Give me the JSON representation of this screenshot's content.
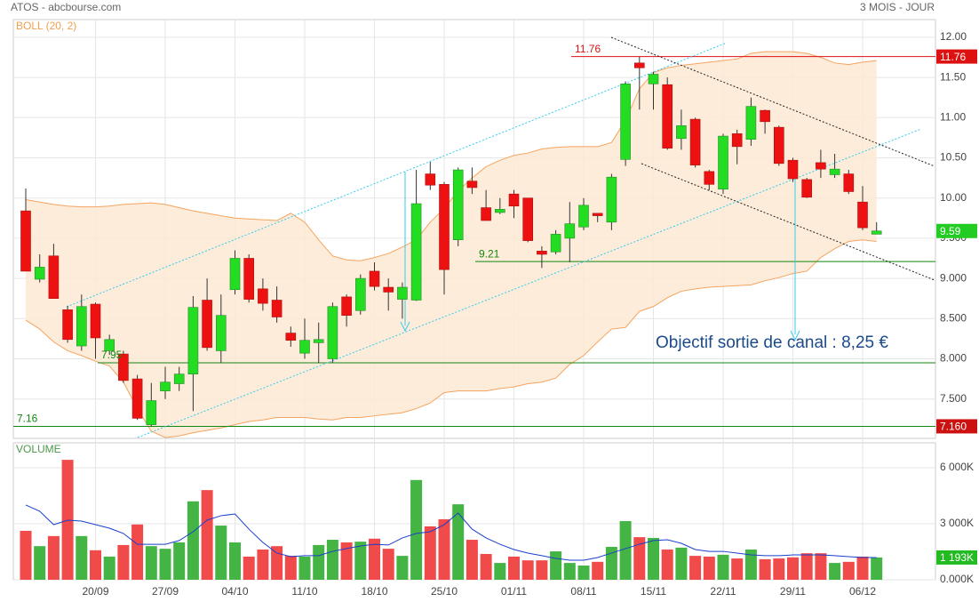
{
  "header": {
    "title": "ATOS - abcbourse.com",
    "period": "3 MOIS - JOUR"
  },
  "chart_data": [
    {
      "type": "candlestick",
      "indicator_label": "BOLL (20, 2)",
      "categories": [
        null,
        null,
        null,
        null,
        null,
        "20/09",
        null,
        null,
        null,
        null,
        "27/09",
        null,
        null,
        null,
        null,
        "04/10",
        null,
        null,
        null,
        null,
        "11/10",
        null,
        null,
        null,
        null,
        "18/10",
        null,
        null,
        null,
        null,
        "25/10",
        null,
        null,
        null,
        null,
        "01/11",
        null,
        null,
        null,
        null,
        "08/11",
        null,
        null,
        null,
        null,
        "15/11",
        null,
        null,
        null,
        null,
        "22/11",
        null,
        null,
        null,
        null,
        "29/11",
        null,
        null,
        null,
        null,
        "06/12",
        null
      ],
      "open": [
        9.84,
        8.99,
        9.28,
        8.61,
        8.16,
        8.68,
        8.1,
        8.06,
        7.75,
        7.18,
        7.6,
        7.69,
        7.81,
        8.73,
        8.1,
        8.86,
        9.25,
        8.87,
        8.73,
        8.32,
        8.07,
        8.2,
        8.0,
        8.77,
        8.6,
        9.09,
        8.89,
        8.74,
        8.73,
        10.3,
        10.17,
        9.48,
        10.21,
        9.88,
        9.82,
        10.05,
        10.0,
        9.34,
        9.33,
        9.5,
        9.64,
        9.81,
        9.7,
        10.48,
        11.68,
        11.42,
        11.41,
        10.74,
        10.98,
        10.33,
        10.11,
        10.8,
        10.73,
        11.09,
        10.88,
        10.47,
        10.23,
        10.44,
        10.29,
        10.3,
        9.95,
        9.55
      ],
      "high": [
        10.12,
        9.3,
        9.43,
        8.66,
        8.8,
        8.7,
        8.3,
        8.1,
        7.8,
        7.7,
        7.9,
        7.9,
        8.78,
        9.0,
        8.8,
        9.35,
        9.3,
        9.0,
        8.9,
        8.4,
        8.5,
        8.45,
        8.7,
        8.8,
        9.05,
        9.2,
        9.0,
        8.95,
        10.35,
        10.45,
        10.2,
        10.38,
        10.38,
        10.1,
        10.0,
        10.1,
        10.0,
        9.4,
        9.6,
        9.95,
        10.0,
        9.8,
        10.3,
        11.45,
        11.76,
        11.57,
        11.5,
        11.1,
        11.0,
        10.35,
        10.8,
        10.85,
        11.25,
        11.1,
        10.9,
        10.5,
        10.25,
        10.6,
        10.55,
        10.35,
        10.15,
        9.7
      ],
      "low": [
        9.09,
        8.95,
        8.75,
        8.2,
        8.1,
        8.0,
        8.05,
        7.7,
        7.24,
        7.16,
        7.5,
        7.6,
        7.35,
        8.1,
        7.95,
        8.8,
        8.7,
        8.6,
        8.45,
        8.15,
        8.0,
        7.95,
        7.95,
        8.4,
        8.55,
        8.85,
        8.6,
        8.5,
        8.72,
        10.1,
        8.8,
        9.4,
        10.05,
        9.72,
        9.8,
        9.75,
        9.45,
        9.13,
        9.3,
        9.2,
        9.6,
        9.7,
        9.6,
        10.4,
        11.1,
        11.1,
        10.6,
        10.6,
        10.38,
        10.1,
        10.05,
        10.42,
        10.65,
        10.8,
        10.4,
        10.2,
        10.0,
        10.25,
        10.25,
        10.05,
        9.6,
        9.55
      ],
      "close": [
        9.09,
        9.14,
        8.75,
        8.24,
        8.65,
        8.26,
        8.24,
        7.73,
        7.26,
        7.48,
        7.71,
        7.81,
        8.64,
        8.14,
        8.54,
        9.25,
        8.74,
        8.69,
        8.52,
        8.23,
        8.23,
        8.24,
        8.65,
        8.54,
        9.0,
        8.9,
        8.83,
        8.89,
        9.93,
        10.16,
        9.11,
        10.35,
        10.13,
        9.72,
        9.86,
        9.9,
        9.47,
        9.3,
        9.55,
        9.68,
        9.91,
        9.78,
        10.26,
        11.42,
        11.62,
        11.54,
        10.62,
        10.9,
        10.41,
        10.17,
        10.77,
        10.64,
        11.14,
        10.95,
        10.43,
        10.24,
        10.01,
        10.36,
        10.36,
        10.08,
        9.63,
        9.59
      ],
      "upper_band": [
        9.98,
        9.95,
        9.92,
        9.9,
        9.89,
        9.89,
        9.9,
        9.92,
        9.93,
        9.94,
        9.92,
        9.88,
        9.84,
        9.81,
        9.78,
        9.75,
        9.74,
        9.73,
        9.72,
        9.81,
        9.7,
        9.48,
        9.28,
        9.23,
        9.22,
        9.26,
        9.31,
        9.39,
        9.48,
        9.7,
        9.87,
        10.09,
        10.25,
        10.39,
        10.47,
        10.53,
        10.56,
        10.61,
        10.63,
        10.64,
        10.64,
        10.64,
        10.69,
        10.97,
        11.36,
        11.56,
        11.62,
        11.65,
        11.67,
        11.69,
        11.71,
        11.73,
        11.8,
        11.82,
        11.82,
        11.82,
        11.8,
        11.75,
        11.68,
        11.66,
        11.69,
        11.71
      ],
      "lower_band": [
        8.48,
        8.37,
        8.21,
        8.1,
        8.04,
        7.97,
        7.91,
        7.71,
        7.38,
        7.1,
        7.02,
        7.04,
        7.08,
        7.11,
        7.14,
        7.18,
        7.22,
        7.24,
        7.27,
        7.27,
        7.27,
        7.25,
        7.24,
        7.27,
        7.27,
        7.29,
        7.31,
        7.33,
        7.38,
        7.45,
        7.58,
        7.6,
        7.6,
        7.6,
        7.63,
        7.65,
        7.69,
        7.71,
        7.76,
        7.93,
        8.04,
        8.21,
        8.37,
        8.39,
        8.59,
        8.65,
        8.76,
        8.84,
        8.87,
        8.89,
        8.9,
        8.91,
        8.92,
        8.97,
        9.01,
        9.06,
        9.09,
        9.26,
        9.37,
        9.46,
        9.48,
        9.46
      ],
      "up_color": "#22dd22",
      "down_color": "#ee1111",
      "band_color": "#f4a460",
      "band_fill": "#fde9d4",
      "ylim": [
        7.01,
        12.22
      ],
      "yticks": [
        {
          "value": 7.5,
          "label": "7.500"
        },
        {
          "value": 8,
          "label": "8.000"
        },
        {
          "value": 8.5,
          "label": "8.500"
        },
        {
          "value": 9,
          "label": "9.000"
        },
        {
          "value": 9.5,
          "label": "9.500"
        },
        {
          "value": 10,
          "label": "10.00"
        },
        {
          "value": 10.5,
          "label": "10.50"
        },
        {
          "value": 11,
          "label": "11.00"
        },
        {
          "value": 11.5,
          "label": "11.50"
        },
        {
          "value": 12,
          "label": "12.00"
        }
      ],
      "levels": [
        {
          "value": 11.76,
          "label": "11.76",
          "color": "#dd1111"
        },
        {
          "value": 9.21,
          "label": "9.21",
          "color": "#118811"
        },
        {
          "value": 7.95,
          "label": "7.95",
          "color": "#118811"
        },
        {
          "value": 7.16,
          "label": "7.16",
          "color": "#118811"
        }
      ],
      "markers": [
        {
          "value": 11.76,
          "label": "11.76",
          "color": "#dd1111"
        },
        {
          "value": 9.59,
          "label": "9.59",
          "color": "#22cc22"
        },
        {
          "value": 7.16,
          "label": "7.160",
          "color": "#cc1111"
        }
      ],
      "annotation": "Objectif sortie de canal : 8,25 €",
      "grid": true
    },
    {
      "type": "bar",
      "indicator_label": "VOLUME",
      "values": [
        2620,
        1800,
        2340,
        6420,
        2340,
        1580,
        1240,
        1860,
        2960,
        1800,
        1660,
        2000,
        4200,
        4800,
        2900,
        2000,
        1240,
        1620,
        1800,
        1280,
        1240,
        1860,
        2140,
        2000,
        2040,
        2200,
        1660,
        1280,
        5340,
        2860,
        3240,
        4040,
        2140,
        1380,
        900,
        1240,
        1040,
        1040,
        1520,
        900,
        760,
        960,
        1760,
        3140,
        2280,
        2240,
        1620,
        1720,
        1280,
        1240,
        1340,
        1140,
        1620,
        1100,
        1140,
        1200,
        1420,
        1420,
        900,
        960,
        1240,
        1193
      ],
      "moving_average": [
        4000,
        3670,
        2950,
        3190,
        3140,
        2950,
        2760,
        2480,
        1900,
        1900,
        1900,
        2100,
        2570,
        3190,
        3430,
        3520,
        2710,
        2000,
        1430,
        1240,
        1290,
        1290,
        1520,
        1670,
        1810,
        1900,
        1860,
        2240,
        2480,
        2570,
        2950,
        3570,
        2710,
        2240,
        1900,
        1620,
        1430,
        1290,
        1140,
        1050,
        1050,
        1190,
        1430,
        1670,
        1900,
        2100,
        2140,
        1950,
        1620,
        1520,
        1520,
        1430,
        1330,
        1290,
        1290,
        1330,
        1330,
        1330,
        1290,
        1240,
        1190,
        1190
      ],
      "up_color": "#44b444",
      "down_color": "#f04a4a",
      "ma_color": "#1a3fcc",
      "ylim": [
        0,
        7330
      ],
      "yticks": [
        {
          "value": 0,
          "label": "0.000K"
        },
        {
          "value": 3000,
          "label": "3 000K"
        },
        {
          "value": 6000,
          "label": "6 000K"
        }
      ],
      "markers": [
        {
          "value": 1193,
          "label": "1 193K",
          "color": "#22bb22"
        }
      ]
    }
  ]
}
